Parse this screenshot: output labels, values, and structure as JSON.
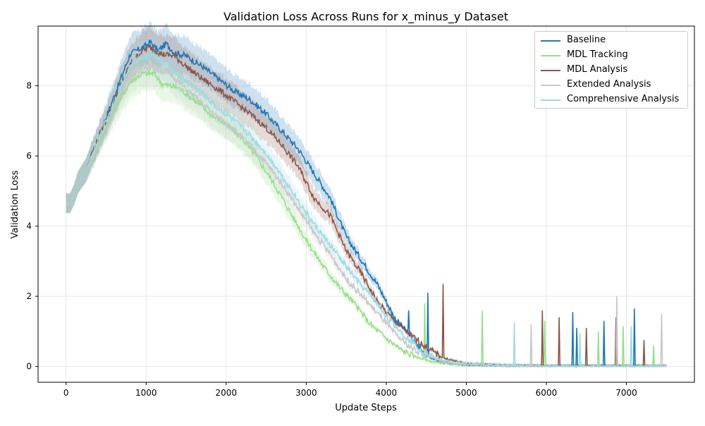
{
  "chart_data": {
    "type": "line",
    "title": "Validation Loss Across Runs for x_minus_y Dataset",
    "xlabel": "Update Steps",
    "ylabel": "Validation Loss",
    "xlim": [
      -350,
      7850
    ],
    "ylim": [
      -0.45,
      9.7
    ],
    "xticks": [
      0,
      1000,
      2000,
      3000,
      4000,
      5000,
      6000,
      7000
    ],
    "yticks": [
      0,
      2,
      4,
      6,
      8
    ],
    "grid": true,
    "legend_position": "top-right",
    "series": [
      {
        "name": "Baseline",
        "color": "#1f77b4",
        "shaded_band": true,
        "values": [
          [
            0,
            4.65
          ],
          [
            50,
            4.65
          ],
          [
            100,
            4.9
          ],
          [
            150,
            5.25
          ],
          [
            250,
            5.6
          ],
          [
            350,
            6.2
          ],
          [
            500,
            7.1
          ],
          [
            650,
            8.0
          ],
          [
            800,
            8.9
          ],
          [
            1000,
            9.15
          ],
          [
            1050,
            9.25
          ],
          [
            1150,
            9.0
          ],
          [
            1250,
            9.2
          ],
          [
            1350,
            8.95
          ],
          [
            1500,
            8.85
          ],
          [
            1700,
            8.55
          ],
          [
            1900,
            8.2
          ],
          [
            2100,
            7.85
          ],
          [
            2300,
            7.6
          ],
          [
            2500,
            7.2
          ],
          [
            2700,
            6.7
          ],
          [
            2900,
            6.2
          ],
          [
            3100,
            5.5
          ],
          [
            3300,
            4.8
          ],
          [
            3500,
            3.7
          ],
          [
            3700,
            3.0
          ],
          [
            3900,
            2.3
          ],
          [
            4100,
            1.4
          ],
          [
            4300,
            0.85
          ],
          [
            4500,
            0.3
          ],
          [
            4700,
            0.12
          ],
          [
            5000,
            0.05
          ],
          [
            5500,
            0.02
          ],
          [
            6000,
            0.0
          ],
          [
            6500,
            0.0
          ],
          [
            7000,
            0.0
          ],
          [
            7500,
            0.0
          ]
        ]
      },
      {
        "name": "MDL Tracking",
        "color": "#98df8a",
        "shaded_band": true,
        "values": [
          [
            0,
            4.65
          ],
          [
            50,
            4.65
          ],
          [
            100,
            4.9
          ],
          [
            150,
            5.25
          ],
          [
            250,
            5.6
          ],
          [
            350,
            6.1
          ],
          [
            500,
            6.85
          ],
          [
            650,
            7.5
          ],
          [
            800,
            8.1
          ],
          [
            950,
            8.35
          ],
          [
            1100,
            8.35
          ],
          [
            1200,
            8.05
          ],
          [
            1400,
            7.95
          ],
          [
            1600,
            7.6
          ],
          [
            1800,
            7.2
          ],
          [
            2000,
            6.9
          ],
          [
            2200,
            6.5
          ],
          [
            2400,
            5.9
          ],
          [
            2600,
            5.2
          ],
          [
            2800,
            4.4
          ],
          [
            3000,
            3.6
          ],
          [
            3200,
            2.9
          ],
          [
            3400,
            2.3
          ],
          [
            3600,
            1.8
          ],
          [
            3800,
            1.2
          ],
          [
            4000,
            0.8
          ],
          [
            4200,
            0.45
          ],
          [
            4400,
            0.25
          ],
          [
            4600,
            0.12
          ],
          [
            5000,
            0.05
          ],
          [
            5500,
            0.02
          ],
          [
            6000,
            0.0
          ],
          [
            6500,
            0.0
          ],
          [
            7000,
            0.0
          ],
          [
            7500,
            0.0
          ]
        ]
      },
      {
        "name": "MDL Analysis",
        "color": "#8c564b",
        "shaded_band": true,
        "values": [
          [
            0,
            4.65
          ],
          [
            50,
            4.65
          ],
          [
            100,
            4.9
          ],
          [
            150,
            5.25
          ],
          [
            250,
            5.6
          ],
          [
            350,
            6.2
          ],
          [
            500,
            7.0
          ],
          [
            650,
            7.85
          ],
          [
            800,
            8.6
          ],
          [
            950,
            9.0
          ],
          [
            1050,
            9.1
          ],
          [
            1200,
            8.9
          ],
          [
            1350,
            8.85
          ],
          [
            1500,
            8.55
          ],
          [
            1700,
            8.2
          ],
          [
            1900,
            7.9
          ],
          [
            2100,
            7.55
          ],
          [
            2300,
            7.2
          ],
          [
            2500,
            6.8
          ],
          [
            2700,
            6.3
          ],
          [
            2900,
            5.7
          ],
          [
            3100,
            4.8
          ],
          [
            3300,
            4.3
          ],
          [
            3500,
            3.3
          ],
          [
            3700,
            2.6
          ],
          [
            3900,
            1.8
          ],
          [
            4100,
            1.3
          ],
          [
            4300,
            0.9
          ],
          [
            4500,
            0.55
          ],
          [
            4700,
            0.25
          ],
          [
            5000,
            0.07
          ],
          [
            5500,
            0.02
          ],
          [
            6000,
            0.0
          ],
          [
            6500,
            0.0
          ],
          [
            7000,
            0.0
          ],
          [
            7500,
            0.0
          ]
        ]
      },
      {
        "name": "Extended Analysis",
        "color": "#c7c7c7",
        "shaded_band": true,
        "values": [
          [
            0,
            4.65
          ],
          [
            50,
            4.65
          ],
          [
            100,
            4.9
          ],
          [
            150,
            5.25
          ],
          [
            250,
            5.6
          ],
          [
            350,
            6.1
          ],
          [
            500,
            6.9
          ],
          [
            650,
            7.7
          ],
          [
            800,
            8.3
          ],
          [
            950,
            8.55
          ],
          [
            1100,
            8.5
          ],
          [
            1300,
            8.35
          ],
          [
            1500,
            7.9
          ],
          [
            1700,
            7.5
          ],
          [
            1900,
            7.1
          ],
          [
            2100,
            6.75
          ],
          [
            2300,
            6.3
          ],
          [
            2500,
            5.8
          ],
          [
            2700,
            5.2
          ],
          [
            2900,
            4.5
          ],
          [
            3100,
            3.8
          ],
          [
            3300,
            3.2
          ],
          [
            3500,
            2.5
          ],
          [
            3700,
            2.0
          ],
          [
            3900,
            1.5
          ],
          [
            4100,
            0.95
          ],
          [
            4300,
            0.55
          ],
          [
            4500,
            0.3
          ],
          [
            4700,
            0.15
          ],
          [
            5000,
            0.06
          ],
          [
            5500,
            0.02
          ],
          [
            6000,
            0.0
          ],
          [
            6500,
            0.0
          ],
          [
            7000,
            0.0
          ],
          [
            7500,
            0.0
          ]
        ]
      },
      {
        "name": "Comprehensive Analysis",
        "color": "#9edae5",
        "shaded_band": true,
        "values": [
          [
            0,
            4.65
          ],
          [
            50,
            4.65
          ],
          [
            100,
            4.9
          ],
          [
            150,
            5.25
          ],
          [
            250,
            5.6
          ],
          [
            350,
            6.15
          ],
          [
            500,
            7.0
          ],
          [
            650,
            7.8
          ],
          [
            800,
            8.55
          ],
          [
            950,
            8.85
          ],
          [
            1100,
            8.85
          ],
          [
            1250,
            8.6
          ],
          [
            1450,
            8.2
          ],
          [
            1650,
            7.9
          ],
          [
            1850,
            7.45
          ],
          [
            2050,
            7.1
          ],
          [
            2250,
            6.7
          ],
          [
            2450,
            6.2
          ],
          [
            2650,
            5.6
          ],
          [
            2850,
            4.9
          ],
          [
            3050,
            4.2
          ],
          [
            3250,
            3.6
          ],
          [
            3450,
            3.0
          ],
          [
            3650,
            2.4
          ],
          [
            3850,
            1.9
          ],
          [
            4050,
            1.3
          ],
          [
            4250,
            0.85
          ],
          [
            4450,
            0.45
          ],
          [
            4650,
            0.2
          ],
          [
            5000,
            0.07
          ],
          [
            5500,
            0.02
          ],
          [
            6000,
            0.0
          ],
          [
            6500,
            0.0
          ],
          [
            7000,
            0.0
          ],
          [
            7500,
            0.0
          ]
        ]
      }
    ],
    "spikes": [
      {
        "series": "Baseline",
        "x": 4520,
        "y": 2.1
      },
      {
        "series": "Baseline",
        "x": 6330,
        "y": 1.55
      },
      {
        "series": "Baseline",
        "x": 6380,
        "y": 1.1
      },
      {
        "series": "Baseline",
        "x": 6720,
        "y": 1.3
      },
      {
        "series": "Baseline",
        "x": 7100,
        "y": 1.65
      },
      {
        "series": "Baseline",
        "x": 4280,
        "y": 1.6
      },
      {
        "series": "MDL Tracking",
        "x": 4480,
        "y": 1.8
      },
      {
        "series": "MDL Tracking",
        "x": 5200,
        "y": 1.6
      },
      {
        "series": "MDL Tracking",
        "x": 5980,
        "y": 1.3
      },
      {
        "series": "MDL Tracking",
        "x": 6650,
        "y": 1.0
      },
      {
        "series": "MDL Tracking",
        "x": 6960,
        "y": 1.15
      },
      {
        "series": "MDL Tracking",
        "x": 7340,
        "y": 0.6
      },
      {
        "series": "MDL Analysis",
        "x": 4710,
        "y": 2.35
      },
      {
        "series": "MDL Analysis",
        "x": 5950,
        "y": 1.6
      },
      {
        "series": "MDL Analysis",
        "x": 6160,
        "y": 1.4
      },
      {
        "series": "MDL Analysis",
        "x": 6500,
        "y": 1.1
      },
      {
        "series": "MDL Analysis",
        "x": 6870,
        "y": 1.4
      },
      {
        "series": "MDL Analysis",
        "x": 7220,
        "y": 0.75
      },
      {
        "series": "Extended Analysis",
        "x": 5810,
        "y": 1.2
      },
      {
        "series": "Extended Analysis",
        "x": 6880,
        "y": 2.0
      },
      {
        "series": "Extended Analysis",
        "x": 7440,
        "y": 1.5
      },
      {
        "series": "Comprehensive Analysis",
        "x": 5600,
        "y": 1.25
      },
      {
        "series": "Comprehensive Analysis",
        "x": 6420,
        "y": 0.95
      },
      {
        "series": "Comprehensive Analysis",
        "x": 7060,
        "y": 1.15
      }
    ]
  }
}
